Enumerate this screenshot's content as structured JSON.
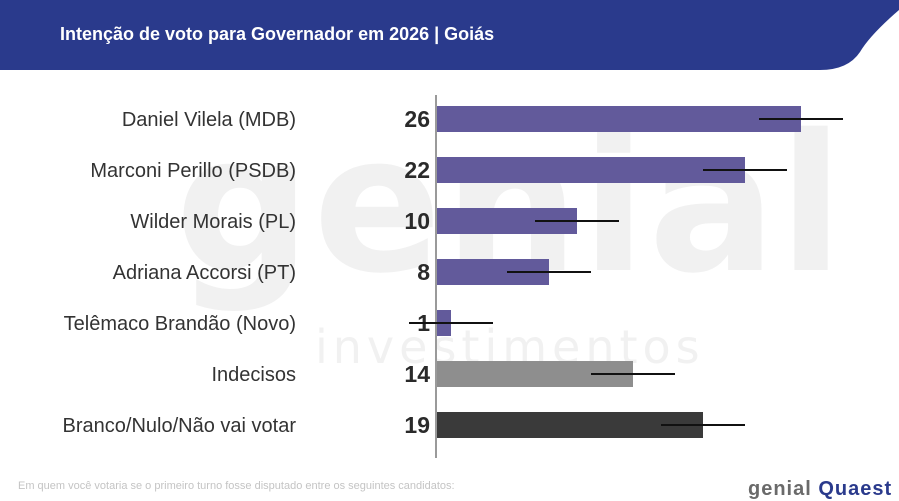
{
  "header": {
    "title": "Intenção de voto para Governador em 2026 | Goiás",
    "bg_color": "#2a3a8c"
  },
  "watermark": {
    "big": "genial",
    "small": "investimentos"
  },
  "footnote": "Em quem você votaria se o primeiro turno fosse disputado entre os seguintes candidatos:",
  "brand": {
    "part1": "genial",
    "part2": "Quaest"
  },
  "chart_data": {
    "type": "bar",
    "orientation": "horizontal",
    "title": "Intenção de voto para Governador em 2026 | Goiás",
    "categories": [
      "Daniel Vilela (MDB)",
      "Marconi Perillo (PSDB)",
      "Wilder Morais (PL)",
      "Adriana Accorsi (PT)",
      "Telêmaco Brandão (Novo)",
      "Indecisos",
      "Branco/Nulo/Não vai votar"
    ],
    "values": [
      26,
      22,
      10,
      8,
      1,
      14,
      19
    ],
    "value_labels": [
      "26",
      "22",
      "10",
      "8",
      "1",
      "14",
      "19"
    ],
    "error_margin": 3,
    "colors": [
      "#625a9b",
      "#625a9b",
      "#625a9b",
      "#625a9b",
      "#625a9b",
      "#8e8e8e",
      "#3a3a3a"
    ],
    "xlim": [
      0,
      30
    ],
    "grid": false,
    "legend": "none"
  }
}
